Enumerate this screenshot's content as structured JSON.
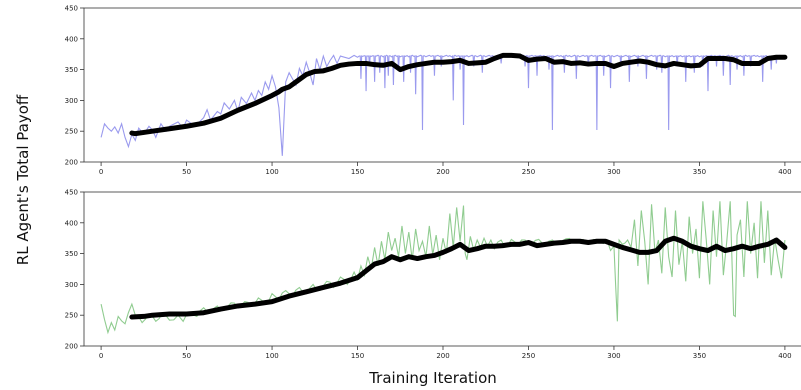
{
  "figure": {
    "ylabel": "RL Agent's Total Payoff",
    "xlabel": "Training Iteration"
  },
  "chart_data": [
    {
      "type": "line",
      "xlim": [
        -10,
        410
      ],
      "ylim": [
        200,
        450
      ],
      "xticks": [
        0,
        50,
        100,
        150,
        200,
        250,
        300,
        350,
        400
      ],
      "yticks": [
        200,
        250,
        300,
        350,
        400,
        450
      ],
      "raw_color": "#9a9aee",
      "smooth_color": "#000000",
      "raw_keypoints": [
        [
          0,
          240
        ],
        [
          2,
          262
        ],
        [
          4,
          255
        ],
        [
          6,
          250
        ],
        [
          8,
          257
        ],
        [
          10,
          247
        ],
        [
          12,
          262
        ],
        [
          14,
          240
        ],
        [
          16,
          225
        ],
        [
          18,
          245
        ],
        [
          20,
          235
        ],
        [
          22,
          255
        ],
        [
          25,
          245
        ],
        [
          28,
          258
        ],
        [
          30,
          252
        ],
        [
          32,
          240
        ],
        [
          35,
          262
        ],
        [
          38,
          250
        ],
        [
          40,
          258
        ],
        [
          45,
          265
        ],
        [
          48,
          255
        ],
        [
          50,
          268
        ],
        [
          55,
          258
        ],
        [
          60,
          272
        ],
        [
          62,
          285
        ],
        [
          64,
          268
        ],
        [
          68,
          282
        ],
        [
          70,
          278
        ],
        [
          72,
          296
        ],
        [
          75,
          286
        ],
        [
          78,
          300
        ],
        [
          80,
          282
        ],
        [
          82,
          305
        ],
        [
          85,
          295
        ],
        [
          88,
          312
        ],
        [
          90,
          300
        ],
        [
          92,
          316
        ],
        [
          94,
          308
        ],
        [
          96,
          330
        ],
        [
          98,
          318
        ],
        [
          100,
          340
        ],
        [
          102,
          322
        ],
        [
          104,
          288
        ],
        [
          106,
          210
        ],
        [
          108,
          330
        ],
        [
          110,
          345
        ],
        [
          112,
          335
        ],
        [
          114,
          325
        ],
        [
          116,
          352
        ],
        [
          118,
          340
        ],
        [
          120,
          362
        ],
        [
          122,
          345
        ],
        [
          124,
          325
        ],
        [
          126,
          368
        ],
        [
          128,
          350
        ],
        [
          130,
          372
        ],
        [
          132,
          355
        ],
        [
          134,
          365
        ],
        [
          136,
          373
        ],
        [
          138,
          360
        ],
        [
          140,
          372
        ],
        [
          145,
          368
        ],
        [
          148,
          373
        ],
        [
          150,
          370
        ]
      ],
      "raw_baseline": 372,
      "raw_dips": [
        [
          152,
          335
        ],
        [
          155,
          315
        ],
        [
          157,
          355
        ],
        [
          160,
          330
        ],
        [
          163,
          345
        ],
        [
          166,
          320
        ],
        [
          168,
          340
        ],
        [
          171,
          325
        ],
        [
          174,
          350
        ],
        [
          177,
          330
        ],
        [
          181,
          345
        ],
        [
          184,
          310
        ],
        [
          188,
          252
        ],
        [
          195,
          340
        ],
        [
          199,
          355
        ],
        [
          206,
          300
        ],
        [
          210,
          350
        ],
        [
          212,
          260
        ],
        [
          218,
          355
        ],
        [
          223,
          345
        ],
        [
          234,
          360
        ],
        [
          248,
          355
        ],
        [
          250,
          320
        ],
        [
          255,
          340
        ],
        [
          262,
          350
        ],
        [
          264,
          252
        ],
        [
          271,
          345
        ],
        [
          278,
          335
        ],
        [
          285,
          355
        ],
        [
          290,
          252
        ],
        [
          294,
          340
        ],
        [
          298,
          320
        ],
        [
          304,
          355
        ],
        [
          309,
          330
        ],
        [
          314,
          355
        ],
        [
          319,
          335
        ],
        [
          325,
          350
        ],
        [
          328,
          345
        ],
        [
          332,
          252
        ],
        [
          337,
          355
        ],
        [
          342,
          330
        ],
        [
          347,
          345
        ],
        [
          352,
          355
        ],
        [
          355,
          315
        ],
        [
          360,
          355
        ],
        [
          364,
          340
        ],
        [
          368,
          325
        ],
        [
          372,
          350
        ],
        [
          376,
          340
        ],
        [
          380,
          355
        ],
        [
          387,
          330
        ],
        [
          392,
          350
        ],
        [
          395,
          360
        ]
      ],
      "smooth_x": [
        18,
        20,
        25,
        30,
        40,
        50,
        60,
        70,
        80,
        90,
        100,
        104,
        106,
        110,
        115,
        120,
        125,
        130,
        135,
        140,
        145,
        150,
        155,
        160,
        165,
        170,
        175,
        180,
        185,
        190,
        195,
        200,
        205,
        210,
        215,
        220,
        225,
        230,
        235,
        240,
        245,
        250,
        255,
        260,
        265,
        270,
        275,
        280,
        285,
        290,
        295,
        300,
        305,
        310,
        315,
        320,
        325,
        330,
        335,
        340,
        345,
        350,
        355,
        360,
        365,
        370,
        375,
        380,
        385,
        390,
        395,
        400
      ],
      "smooth_y": [
        247,
        246,
        248,
        250,
        254,
        258,
        263,
        271,
        284,
        295,
        308,
        314,
        318,
        322,
        332,
        342,
        347,
        348,
        352,
        357,
        359,
        360,
        360,
        358,
        357,
        360,
        350,
        355,
        358,
        360,
        362,
        362,
        363,
        365,
        360,
        361,
        362,
        368,
        373,
        373,
        372,
        365,
        367,
        368,
        362,
        363,
        360,
        361,
        359,
        360,
        360,
        355,
        360,
        362,
        364,
        362,
        358,
        356,
        360,
        358,
        356,
        357,
        368,
        368,
        368,
        366,
        360,
        360,
        360,
        368,
        370,
        370
      ]
    },
    {
      "type": "line",
      "xlim": [
        -10,
        410
      ],
      "ylim": [
        200,
        450
      ],
      "xticks": [
        0,
        50,
        100,
        150,
        200,
        250,
        300,
        350,
        400
      ],
      "yticks": [
        200,
        250,
        300,
        350,
        400,
        450
      ],
      "raw_color": "#90cc90",
      "smooth_color": "#000000",
      "raw_keypoints": [
        [
          0,
          268
        ],
        [
          2,
          243
        ],
        [
          4,
          222
        ],
        [
          6,
          238
        ],
        [
          8,
          226
        ],
        [
          10,
          248
        ],
        [
          14,
          236
        ],
        [
          18,
          268
        ],
        [
          20,
          250
        ],
        [
          24,
          238
        ],
        [
          28,
          252
        ],
        [
          32,
          240
        ],
        [
          36,
          254
        ],
        [
          40,
          242
        ],
        [
          45,
          250
        ],
        [
          48,
          240
        ],
        [
          52,
          255
        ],
        [
          56,
          248
        ],
        [
          60,
          262
        ],
        [
          64,
          255
        ],
        [
          68,
          265
        ],
        [
          72,
          258
        ],
        [
          76,
          270
        ],
        [
          80,
          262
        ],
        [
          84,
          272
        ],
        [
          88,
          265
        ],
        [
          92,
          278
        ],
        [
          96,
          268
        ],
        [
          100,
          285
        ],
        [
          104,
          275
        ],
        [
          108,
          290
        ],
        [
          112,
          282
        ],
        [
          116,
          295
        ],
        [
          120,
          285
        ],
        [
          124,
          300
        ],
        [
          128,
          290
        ],
        [
          132,
          305
        ],
        [
          136,
          295
        ],
        [
          140,
          312
        ],
        [
          144,
          300
        ],
        [
          148,
          320
        ],
        [
          150,
          308
        ],
        [
          152,
          330
        ],
        [
          154,
          315
        ],
        [
          156,
          345
        ],
        [
          158,
          325
        ],
        [
          160,
          360
        ],
        [
          162,
          330
        ],
        [
          164,
          370
        ],
        [
          166,
          340
        ],
        [
          168,
          385
        ],
        [
          170,
          355
        ],
        [
          172,
          375
        ],
        [
          174,
          345
        ],
        [
          176,
          395
        ],
        [
          178,
          350
        ],
        [
          180,
          385
        ],
        [
          182,
          340
        ],
        [
          184,
          390
        ],
        [
          186,
          355
        ],
        [
          188,
          370
        ],
        [
          190,
          345
        ],
        [
          192,
          395
        ],
        [
          194,
          348
        ],
        [
          196,
          380
        ],
        [
          198,
          340
        ],
        [
          200,
          375
        ],
        [
          202,
          350
        ],
        [
          204,
          415
        ],
        [
          206,
          360
        ],
        [
          208,
          425
        ],
        [
          210,
          370
        ],
        [
          212,
          428
        ],
        [
          213,
          350
        ],
        [
          214,
          340
        ],
        [
          216,
          378
        ],
        [
          218,
          355
        ],
        [
          220,
          372
        ],
        [
          222,
          360
        ],
        [
          224,
          375
        ],
        [
          226,
          362
        ],
        [
          228,
          372
        ],
        [
          230,
          358
        ],
        [
          234,
          372
        ],
        [
          236,
          362
        ],
        [
          240,
          373
        ],
        [
          244,
          365
        ],
        [
          248,
          372
        ],
        [
          252,
          365
        ],
        [
          256,
          373
        ],
        [
          260,
          366
        ],
        [
          264,
          372
        ],
        [
          268,
          368
        ],
        [
          272,
          374
        ],
        [
          276,
          368
        ],
        [
          280,
          372
        ],
        [
          284,
          369
        ],
        [
          288,
          373
        ],
        [
          292,
          368
        ],
        [
          296,
          372
        ],
        [
          298,
          355
        ],
        [
          300,
          362
        ],
        [
          301,
          298
        ],
        [
          302,
          240
        ],
        [
          303,
          372
        ],
        [
          305,
          365
        ],
        [
          308,
          372
        ],
        [
          310,
          360
        ],
        [
          312,
          405
        ],
        [
          314,
          330
        ],
        [
          316,
          420
        ],
        [
          318,
          370
        ],
        [
          320,
          300
        ],
        [
          322,
          430
        ],
        [
          324,
          352
        ],
        [
          326,
          372
        ],
        [
          328,
          318
        ],
        [
          330,
          425
        ],
        [
          332,
          345
        ],
        [
          334,
          312
        ],
        [
          336,
          420
        ],
        [
          338,
          332
        ],
        [
          340,
          370
        ],
        [
          342,
          305
        ],
        [
          344,
          410
        ],
        [
          346,
          350
        ],
        [
          348,
          390
        ],
        [
          350,
          310
        ],
        [
          352,
          435
        ],
        [
          354,
          372
        ],
        [
          356,
          300
        ],
        [
          358,
          420
        ],
        [
          360,
          345
        ],
        [
          362,
          435
        ],
        [
          364,
          315
        ],
        [
          366,
          370
        ],
        [
          368,
          435
        ],
        [
          370,
          250
        ],
        [
          371,
          248
        ],
        [
          372,
          380
        ],
        [
          374,
          405
        ],
        [
          376,
          312
        ],
        [
          378,
          435
        ],
        [
          380,
          350
        ],
        [
          382,
          400
        ],
        [
          384,
          310
        ],
        [
          386,
          435
        ],
        [
          388,
          335
        ],
        [
          390,
          420
        ],
        [
          392,
          315
        ],
        [
          394,
          375
        ],
        [
          396,
          340
        ],
        [
          398,
          310
        ],
        [
          400,
          372
        ]
      ],
      "raw_baseline": null,
      "raw_dips": [],
      "smooth_x": [
        18,
        25,
        30,
        40,
        50,
        60,
        70,
        80,
        90,
        100,
        110,
        120,
        130,
        140,
        150,
        155,
        160,
        165,
        170,
        175,
        180,
        185,
        190,
        195,
        200,
        205,
        210,
        215,
        220,
        225,
        230,
        235,
        240,
        245,
        250,
        255,
        260,
        265,
        270,
        275,
        280,
        285,
        290,
        295,
        300,
        305,
        310,
        315,
        320,
        325,
        330,
        335,
        340,
        345,
        350,
        355,
        360,
        365,
        370,
        375,
        380,
        385,
        390,
        395,
        400
      ],
      "smooth_y": [
        247,
        248,
        250,
        252,
        252,
        254,
        260,
        265,
        268,
        272,
        281,
        288,
        295,
        302,
        311,
        322,
        333,
        337,
        345,
        340,
        345,
        342,
        345,
        347,
        352,
        358,
        365,
        355,
        358,
        362,
        362,
        363,
        365,
        365,
        368,
        363,
        365,
        367,
        368,
        370,
        370,
        368,
        370,
        370,
        365,
        360,
        356,
        352,
        352,
        355,
        370,
        375,
        370,
        362,
        358,
        355,
        362,
        355,
        358,
        362,
        358,
        362,
        365,
        372,
        360
      ]
    }
  ]
}
